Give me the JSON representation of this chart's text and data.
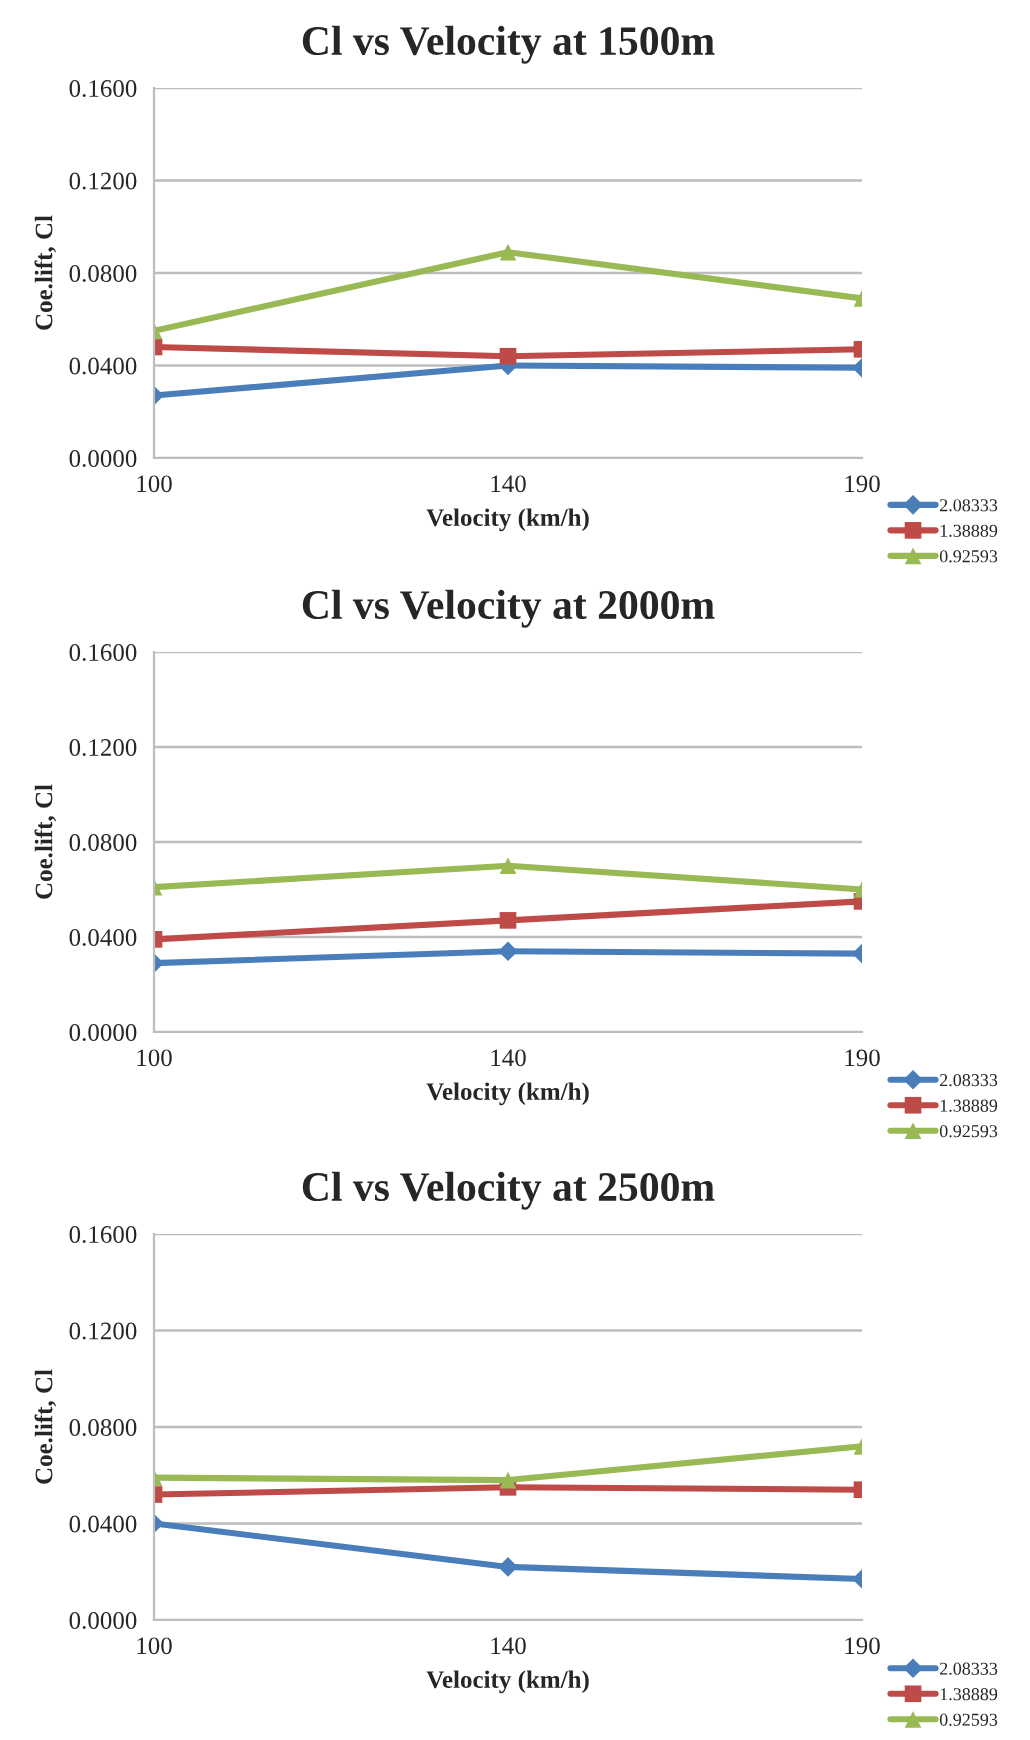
{
  "chart_data": [
    {
      "type": "line",
      "title": "Cl vs Velocity at 1500m",
      "xlabel": "Velocity (km/h)",
      "ylabel": "Coe.lift, Cl",
      "categories": [
        "100",
        "140",
        "190"
      ],
      "ylim": [
        0,
        0.16
      ],
      "yticks": [
        {
          "value": 0,
          "label": "0.0000"
        },
        {
          "value": 0.04,
          "label": "0.0400"
        },
        {
          "value": 0.08,
          "label": "0.0800"
        },
        {
          "value": 0.12,
          "label": "0.1200"
        },
        {
          "value": 0.16,
          "label": "0.1600"
        }
      ],
      "grid": "y",
      "legend": "bottom right",
      "series": [
        {
          "name": "2.08333",
          "color": "#4a7ebb",
          "marker": "diamond",
          "values": [
            0.027,
            0.04,
            0.039
          ]
        },
        {
          "name": "1.38889",
          "color": "#be4b48",
          "marker": "square",
          "values": [
            0.048,
            0.044,
            0.047
          ]
        },
        {
          "name": "0.92593",
          "color": "#98b954",
          "marker": "triangle",
          "values": [
            0.055,
            0.089,
            0.069
          ]
        }
      ]
    },
    {
      "type": "line",
      "title": "Cl vs Velocity at 2000m",
      "xlabel": "Velocity (km/h)",
      "ylabel": "Coe.lift, Cl",
      "categories": [
        "100",
        "140",
        "190"
      ],
      "ylim": [
        0,
        0.16
      ],
      "yticks": [
        {
          "value": 0,
          "label": "0.0000"
        },
        {
          "value": 0.04,
          "label": "0.0400"
        },
        {
          "value": 0.08,
          "label": "0.0800"
        },
        {
          "value": 0.12,
          "label": "0.1200"
        },
        {
          "value": 0.16,
          "label": "0.1600"
        }
      ],
      "grid": "y",
      "legend": "bottom right",
      "series": [
        {
          "name": "2.08333",
          "color": "#4a7ebb",
          "marker": "diamond",
          "values": [
            0.029,
            0.034,
            0.033
          ]
        },
        {
          "name": "1.38889",
          "color": "#be4b48",
          "marker": "square",
          "values": [
            0.039,
            0.047,
            0.055
          ]
        },
        {
          "name": "0.92593",
          "color": "#98b954",
          "marker": "triangle",
          "values": [
            0.061,
            0.07,
            0.06
          ]
        }
      ]
    },
    {
      "type": "line",
      "title": "Cl vs Velocity at 2500m",
      "xlabel": "Velocity (km/h)",
      "ylabel": "Coe.lift, Cl",
      "categories": [
        "100",
        "140",
        "190"
      ],
      "ylim": [
        0,
        0.16
      ],
      "yticks": [
        {
          "value": 0,
          "label": "0.0000"
        },
        {
          "value": 0.04,
          "label": "0.0400"
        },
        {
          "value": 0.08,
          "label": "0.0800"
        },
        {
          "value": 0.12,
          "label": "0.1200"
        },
        {
          "value": 0.16,
          "label": "0.1600"
        }
      ],
      "grid": "y",
      "legend": "bottom right",
      "series": [
        {
          "name": "2.08333",
          "color": "#4a7ebb",
          "marker": "diamond",
          "values": [
            0.04,
            0.022,
            0.017
          ]
        },
        {
          "name": "1.38889",
          "color": "#be4b48",
          "marker": "square",
          "values": [
            0.052,
            0.055,
            0.054
          ]
        },
        {
          "name": "0.92593",
          "color": "#98b954",
          "marker": "triangle",
          "values": [
            0.059,
            0.058,
            0.072
          ]
        }
      ]
    }
  ]
}
